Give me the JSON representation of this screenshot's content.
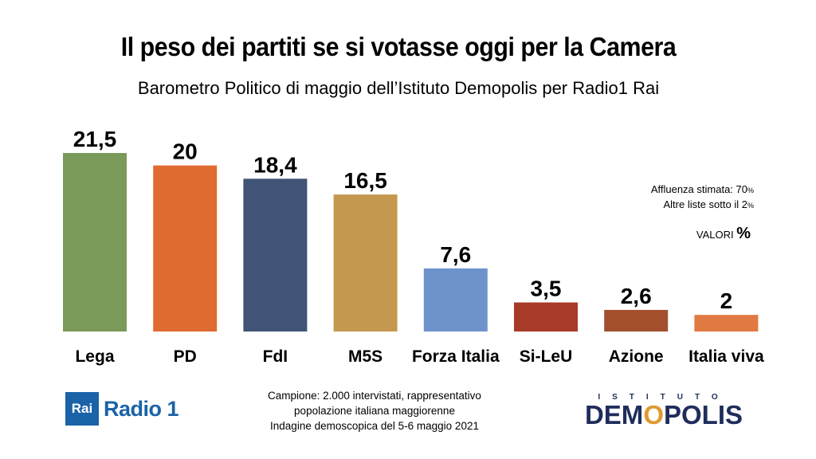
{
  "header": {
    "title": "Il peso dei partiti se si votasse oggi per la Camera",
    "subtitle": "Barometro Politico di maggio dell’Istituto Demopolis per Radio1 Rai"
  },
  "notes": {
    "turnout_label": "Affluenza stimata: 70",
    "turnout_unit": "%",
    "others_label": "Altre liste sotto il 2",
    "others_unit": "%",
    "values_label": "VALORI",
    "values_unit": "%"
  },
  "footer": {
    "rai_logo": "Rai",
    "rai_channel": "Radio 1",
    "sample_line1": "Campione: 2.000 intervistati, rappresentativo",
    "sample_line2": "popolazione italiana maggiorenne",
    "sample_line3": "Indagine demoscopica del 5-6 maggio 2021",
    "demopolis_top": "ISTITUTO",
    "demopolis_main_left": "DEM",
    "demopolis_main_o": "O",
    "demopolis_main_right": "POLIS"
  },
  "chart_data": {
    "type": "bar",
    "categories": [
      "Lega",
      "PD",
      "FdI",
      "M5S",
      "Forza Italia",
      "Si-LeU",
      "Azione",
      "Italia viva"
    ],
    "values": [
      21.5,
      20,
      18.4,
      16.5,
      7.6,
      3.5,
      2.6,
      2
    ],
    "value_labels": [
      "21,5",
      "20",
      "18,4",
      "16,5",
      "7,6",
      "3,5",
      "2,6",
      "2"
    ],
    "colors": [
      "#7a9a5a",
      "#e06b30",
      "#3f5476",
      "#c4984f",
      "#6e93cc",
      "#a83a28",
      "#a34f2e",
      "#e07a42"
    ],
    "ylim": [
      0,
      21.5
    ],
    "grid": false,
    "legend": "none"
  }
}
